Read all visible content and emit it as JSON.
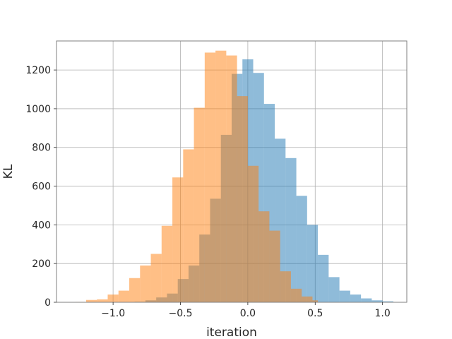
{
  "chart_data": {
    "type": "bar",
    "subtype": "overlapping-histogram",
    "title": "",
    "xlabel": "iteration",
    "ylabel": "KL",
    "xlim": [
      -1.42,
      1.18
    ],
    "ylim": [
      0,
      1350
    ],
    "xticks": [
      -1.0,
      -0.5,
      0.0,
      0.5,
      1.0
    ],
    "xtick_labels": [
      "−1.0",
      "−0.5",
      "0.0",
      "0.5",
      "1.0"
    ],
    "yticks": [
      0,
      200,
      400,
      600,
      800,
      1000,
      1200
    ],
    "ytick_labels": [
      "0",
      "200",
      "400",
      "600",
      "800",
      "1000",
      "1200"
    ],
    "grid": true,
    "legend": "none",
    "series": [
      {
        "color": "#1f77b4",
        "alpha": 0.5,
        "bin_edges": [
          -0.84,
          -0.76,
          -0.68,
          -0.6,
          -0.52,
          -0.44,
          -0.36,
          -0.28,
          -0.2,
          -0.12,
          -0.04,
          0.04,
          0.12,
          0.2,
          0.28,
          0.36,
          0.44,
          0.52,
          0.6,
          0.68,
          0.76,
          0.84,
          0.92,
          1.0,
          1.08
        ],
        "counts": [
          3,
          10,
          25,
          45,
          120,
          190,
          350,
          535,
          865,
          1180,
          1255,
          1185,
          1025,
          845,
          745,
          550,
          400,
          245,
          130,
          60,
          40,
          20,
          10,
          5
        ]
      },
      {
        "color": "#ff7f0e",
        "alpha": 0.5,
        "bin_edges": [
          -1.28,
          -1.2,
          -1.12,
          -1.04,
          -0.96,
          -0.88,
          -0.8,
          -0.72,
          -0.64,
          -0.56,
          -0.48,
          -0.4,
          -0.32,
          -0.24,
          -0.16,
          -0.08,
          0.0,
          0.08,
          0.16,
          0.24,
          0.32,
          0.4,
          0.48,
          0.52
        ],
        "counts": [
          2,
          12,
          15,
          40,
          60,
          125,
          190,
          250,
          395,
          645,
          790,
          1005,
          1290,
          1300,
          1275,
          1065,
          705,
          470,
          370,
          160,
          70,
          30,
          10
        ]
      }
    ]
  }
}
